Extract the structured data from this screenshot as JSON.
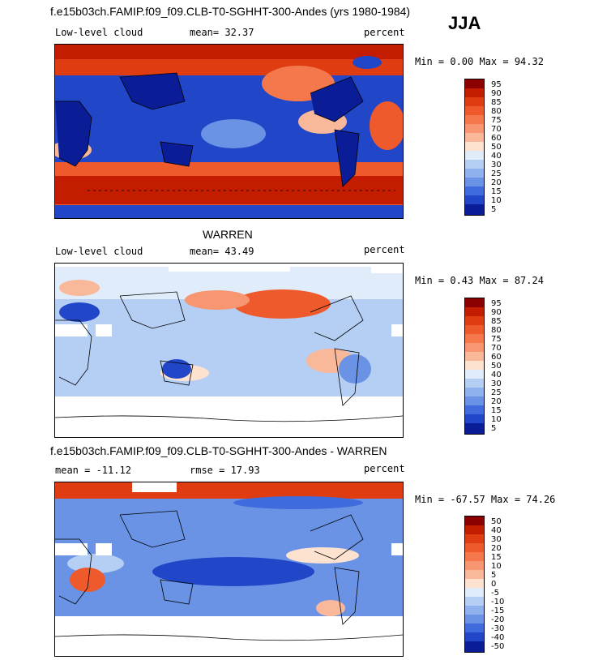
{
  "season": "JJA",
  "panels": [
    {
      "title": "f.e15b03ch.FAMIP.f09_f09.CLB-T0-SGHHT-300-Andes (yrs 1980-1984)",
      "left_label": "Low-level cloud",
      "stat_label": "mean=  32.37",
      "units": "percent",
      "minmax": "Min =   0.00 Max =  94.32",
      "colorbar": [
        "95",
        "90",
        "85",
        "80",
        "75",
        "70",
        "60",
        "50",
        "40",
        "30",
        "25",
        "20",
        "15",
        "10",
        "5"
      ]
    },
    {
      "title": "WARREN",
      "left_label": "Low-level cloud",
      "stat_label": "mean=  43.49",
      "units": "percent",
      "minmax": "Min =   0.43 Max =  87.24",
      "colorbar": [
        "95",
        "90",
        "85",
        "80",
        "75",
        "70",
        "60",
        "50",
        "40",
        "30",
        "25",
        "20",
        "15",
        "10",
        "5"
      ]
    },
    {
      "title": "f.e15b03ch.FAMIP.f09_f09.CLB-T0-SGHHT-300-Andes - WARREN",
      "left_label": "mean = -11.12",
      "stat_label": "rmse =  17.93",
      "units": "percent",
      "minmax": "Min = -67.57 Max =  74.26",
      "colorbar": [
        "50",
        "40",
        "30",
        "20",
        "15",
        "10",
        "5",
        "0",
        "-5",
        "-10",
        "-15",
        "-20",
        "-30",
        "-40",
        "-50"
      ]
    }
  ],
  "colors": [
    "#8b0000",
    "#c41c00",
    "#e03c12",
    "#ef5a2c",
    "#f5784c",
    "#f79670",
    "#f9b899",
    "#fde3cf",
    "#e0ecfa",
    "#b5cff4",
    "#8fb2ee",
    "#6a93e6",
    "#3f6bdc",
    "#2146c8",
    "#0a1d96"
  ]
}
